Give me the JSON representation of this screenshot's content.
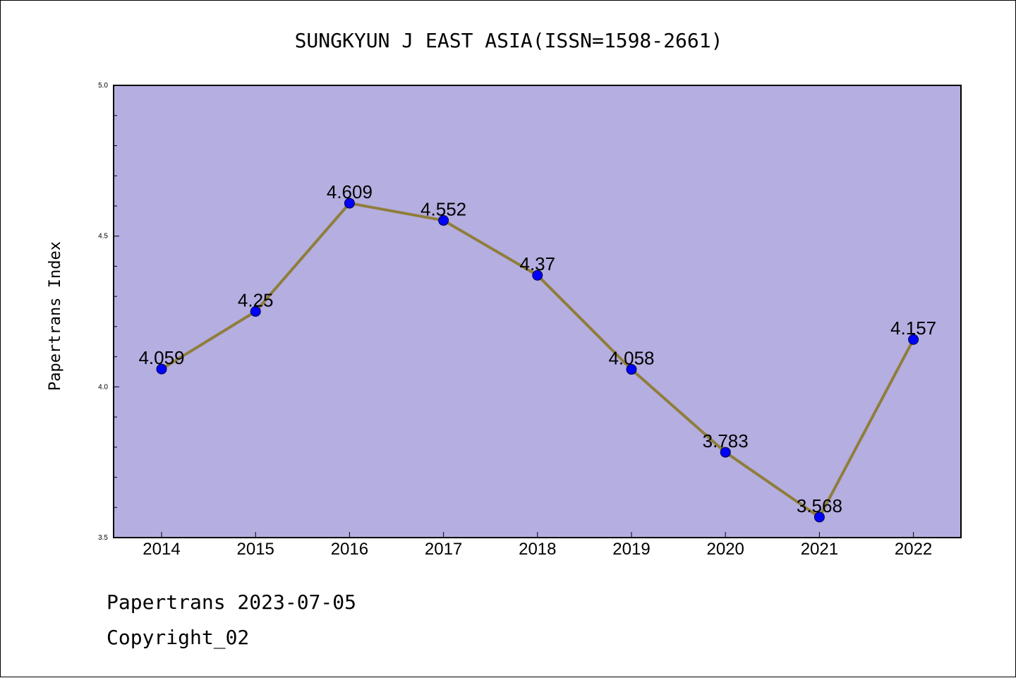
{
  "colors": {
    "plot_background": "#b5aee1",
    "line": "#8f7e3b",
    "marker": "#0000ff",
    "axis": "#000000"
  },
  "chart_data": {
    "type": "line",
    "title": "SUNGKYUN J EAST ASIA(ISSN=1598-2661)",
    "xlabel": "",
    "ylabel": "Papertrans Index",
    "categories": [
      "2014",
      "2015",
      "2016",
      "2017",
      "2018",
      "2019",
      "2020",
      "2021",
      "2022"
    ],
    "series": [
      {
        "values": [
          4.059,
          4.25,
          4.609,
          4.552,
          4.37,
          4.058,
          3.783,
          3.568,
          4.157
        ],
        "labels": [
          "4.059",
          "4.25",
          "4.609",
          "4.552",
          "4.37",
          "4.058",
          "3.783",
          "3.568",
          "4.157"
        ]
      }
    ],
    "ylim": [
      3.5,
      5.0
    ],
    "yticks": [
      "3.5",
      "4.0",
      "4.5",
      "5.0"
    ],
    "grid": false,
    "legend": "none"
  },
  "footer": {
    "line1": "Papertrans 2023-07-05",
    "line2": "Copyright_02"
  }
}
